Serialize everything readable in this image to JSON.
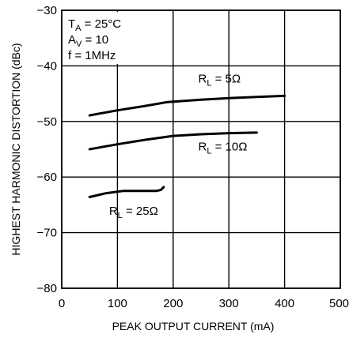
{
  "chart_data": {
    "type": "line",
    "xlabel": "PEAK OUTPUT CURRENT (mA)",
    "ylabel": "HIGHEST HARMONIC DISTORTION (dBc)",
    "xlim": [
      0,
      500
    ],
    "ylim": [
      -80,
      -30
    ],
    "x_ticks": [
      "0",
      "100",
      "200",
      "300",
      "400",
      "500"
    ],
    "y_ticks": [
      "−30",
      "−40",
      "−50",
      "−60",
      "−70",
      "−80"
    ],
    "grid": true,
    "conditions": [
      {
        "symbol": "T",
        "sub": "A",
        "rest": " = 25°C"
      },
      {
        "symbol": "A",
        "sub": "V",
        "rest": " = 10"
      },
      {
        "symbol": "",
        "sub": "",
        "rest": "f = 1MHz"
      }
    ],
    "series": [
      {
        "label_main": "R",
        "label_sub": "L",
        "label_rest": " = 5Ω",
        "x": [
          50,
          100,
          150,
          190,
          250,
          300,
          350,
          400
        ],
        "y": [
          -48.9,
          -48.0,
          -47.2,
          -46.5,
          -46.1,
          -45.8,
          -45.6,
          -45.4
        ]
      },
      {
        "label_main": "R",
        "label_sub": "L",
        "label_rest": " = 10Ω",
        "x": [
          50,
          100,
          150,
          200,
          250,
          300,
          350
        ],
        "y": [
          -55.0,
          -54.1,
          -53.3,
          -52.6,
          -52.3,
          -52.1,
          -52.0
        ]
      },
      {
        "label_main": "R",
        "label_sub": "L",
        "label_rest": " = 25Ω",
        "x": [
          50,
          80,
          110,
          140,
          170,
          178,
          183
        ],
        "y": [
          -63.6,
          -62.9,
          -62.5,
          -62.5,
          -62.5,
          -62.3,
          -61.8
        ]
      }
    ]
  }
}
